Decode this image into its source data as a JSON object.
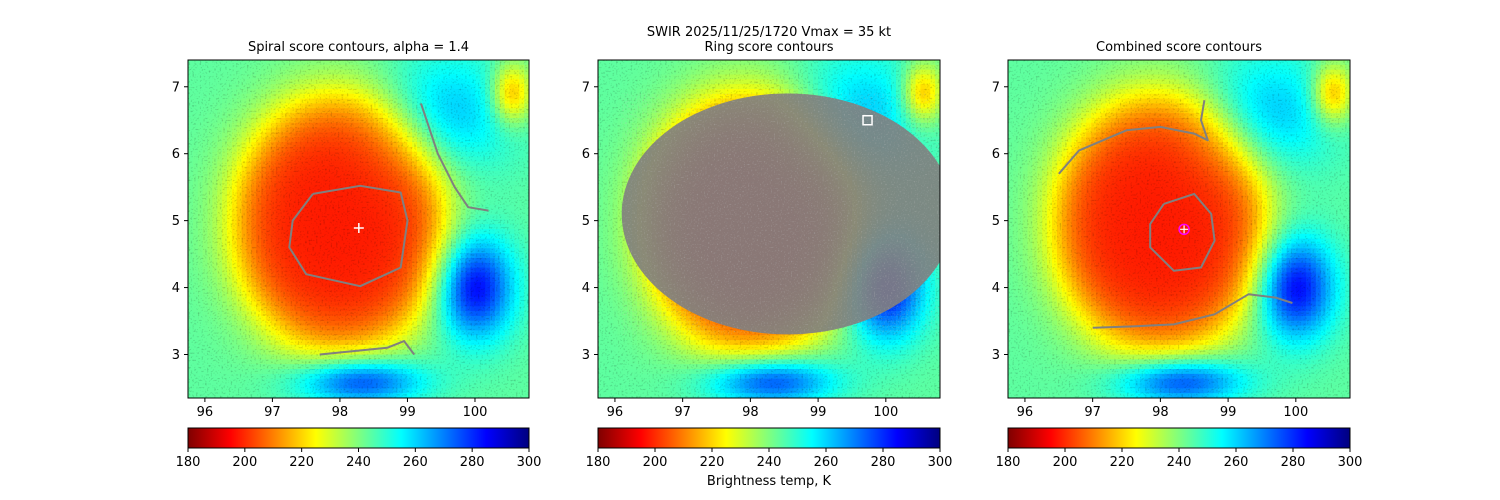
{
  "suptitle_line1": "SWIR  2025/11/25/1720    Vmax = 35 kt",
  "colorbar_label": "Brightness temp, K",
  "colormap": [
    "#7f0000",
    "#ff0000",
    "#ff7f00",
    "#ffff00",
    "#7fff7f",
    "#00ffff",
    "#007fff",
    "#0000ff",
    "#00007f"
  ],
  "contour_color": "#808080",
  "chart_data": [
    {
      "type": "heatmap",
      "title": "Spiral score contours, alpha =  1.4",
      "xlim": [
        95.75,
        100.8
      ],
      "ylim": [
        2.35,
        7.4
      ],
      "xticks": [
        96,
        97,
        98,
        99,
        100
      ],
      "yticks": [
        3,
        4,
        5,
        6,
        7
      ],
      "colorbar": {
        "range": [
          180,
          300
        ],
        "ticks": [
          180,
          200,
          220,
          240,
          260,
          280,
          300
        ]
      },
      "markers": [
        {
          "symbol": "plus",
          "x": 98.28,
          "y": 4.89,
          "color": "#ffffff"
        }
      ],
      "contours": [
        {
          "points": [
            [
              97.6,
              5.4
            ],
            [
              98.3,
              5.52
            ],
            [
              98.9,
              5.42
            ],
            [
              99.0,
              5.0
            ],
            [
              98.9,
              4.3
            ],
            [
              98.3,
              4.02
            ],
            [
              97.5,
              4.2
            ],
            [
              97.25,
              4.6
            ],
            [
              97.3,
              5.0
            ],
            [
              97.6,
              5.4
            ]
          ]
        },
        {
          "points": [
            [
              97.7,
              3.0
            ],
            [
              98.2,
              3.05
            ],
            [
              98.7,
              3.1
            ],
            [
              98.95,
              3.2
            ],
            [
              99.1,
              3.0
            ]
          ]
        },
        {
          "points": [
            [
              99.2,
              6.75
            ],
            [
              99.45,
              6.0
            ],
            [
              99.7,
              5.5
            ],
            [
              99.9,
              5.2
            ],
            [
              100.2,
              5.15
            ]
          ]
        }
      ]
    },
    {
      "type": "heatmap",
      "title": "Ring score contours",
      "xlim": [
        95.75,
        100.8
      ],
      "ylim": [
        2.35,
        7.4
      ],
      "xticks": [
        96,
        97,
        98,
        99,
        100
      ],
      "yticks": [
        3,
        4,
        5,
        6,
        7
      ],
      "colorbar": {
        "range": [
          180,
          300
        ],
        "ticks": [
          180,
          200,
          220,
          240,
          260,
          280,
          300
        ]
      },
      "markers": [
        {
          "symbol": "square",
          "x": 99.73,
          "y": 6.5,
          "color": "#ffffff"
        }
      ],
      "ring_region": {
        "cx": 98.55,
        "cy": 5.1,
        "rx": 2.45,
        "ry": 1.8
      }
    },
    {
      "type": "heatmap",
      "title": "Combined score contours",
      "xlim": [
        95.75,
        100.8
      ],
      "ylim": [
        2.35,
        7.4
      ],
      "xticks": [
        96,
        97,
        98,
        99,
        100
      ],
      "yticks": [
        3,
        4,
        5,
        6,
        7
      ],
      "colorbar": {
        "range": [
          180,
          300
        ],
        "ticks": [
          180,
          200,
          220,
          240,
          260,
          280,
          300
        ]
      },
      "markers": [
        {
          "symbol": "circle",
          "x": 98.35,
          "y": 4.87,
          "color": "#ff00ff"
        }
      ],
      "contours": [
        {
          "points": [
            [
              98.05,
              5.25
            ],
            [
              98.5,
              5.4
            ],
            [
              98.75,
              5.1
            ],
            [
              98.8,
              4.7
            ],
            [
              98.6,
              4.3
            ],
            [
              98.2,
              4.25
            ],
            [
              97.85,
              4.6
            ],
            [
              97.85,
              4.95
            ],
            [
              98.05,
              5.25
            ]
          ]
        },
        {
          "points": [
            [
              96.5,
              5.7
            ],
            [
              96.8,
              6.05
            ],
            [
              97.5,
              6.35
            ],
            [
              98.0,
              6.4
            ],
            [
              98.5,
              6.3
            ],
            [
              98.7,
              6.2
            ],
            [
              98.6,
              6.5
            ],
            [
              98.65,
              6.8
            ]
          ]
        },
        {
          "points": [
            [
              97.0,
              3.4
            ],
            [
              97.6,
              3.42
            ],
            [
              98.2,
              3.45
            ],
            [
              98.8,
              3.6
            ],
            [
              99.3,
              3.9
            ],
            [
              99.7,
              3.85
            ],
            [
              99.95,
              3.77
            ]
          ]
        }
      ]
    }
  ]
}
